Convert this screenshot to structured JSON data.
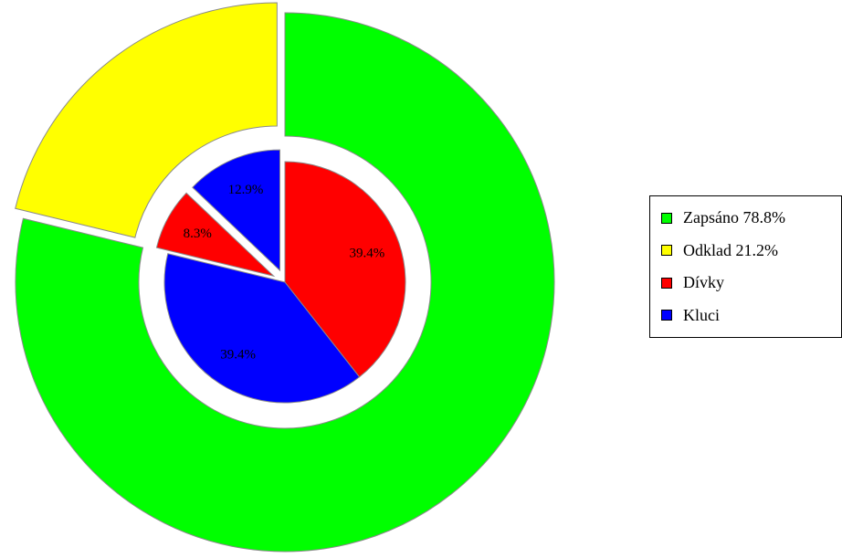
{
  "chart_data": {
    "type": "pie",
    "subtype": "nested-donut-exploded",
    "rings": [
      {
        "name": "outer",
        "slices": [
          {
            "label": "Zapsáno",
            "value": 78.8,
            "color": "#00ff00",
            "exploded": false
          },
          {
            "label": "Odklad",
            "value": 21.2,
            "color": "#ffff00",
            "exploded": true
          }
        ]
      },
      {
        "name": "inner",
        "slices": [
          {
            "label": "Dívky",
            "value": 39.4,
            "color": "#ff0000",
            "exploded": false,
            "data_label": "39.4%"
          },
          {
            "label": "Kluci",
            "value": 39.4,
            "color": "#0000ff",
            "exploded": false,
            "data_label": "39.4%"
          },
          {
            "label": "Dívky",
            "value": 8.3,
            "color": "#ff0000",
            "exploded": true,
            "data_label": "8.3%"
          },
          {
            "label": "Kluci",
            "value": 12.9,
            "color": "#0000ff",
            "exploded": true,
            "data_label": "12.9%"
          }
        ]
      }
    ],
    "legend_position": "right",
    "legend": [
      {
        "label": "Zapsáno 78.8%",
        "color": "#00ff00"
      },
      {
        "label": "Odklad 21.2%",
        "color": "#ffff00"
      },
      {
        "label": "Dívky",
        "color": "#ff0000"
      },
      {
        "label": "Kluci",
        "color": "#0000ff"
      }
    ]
  }
}
